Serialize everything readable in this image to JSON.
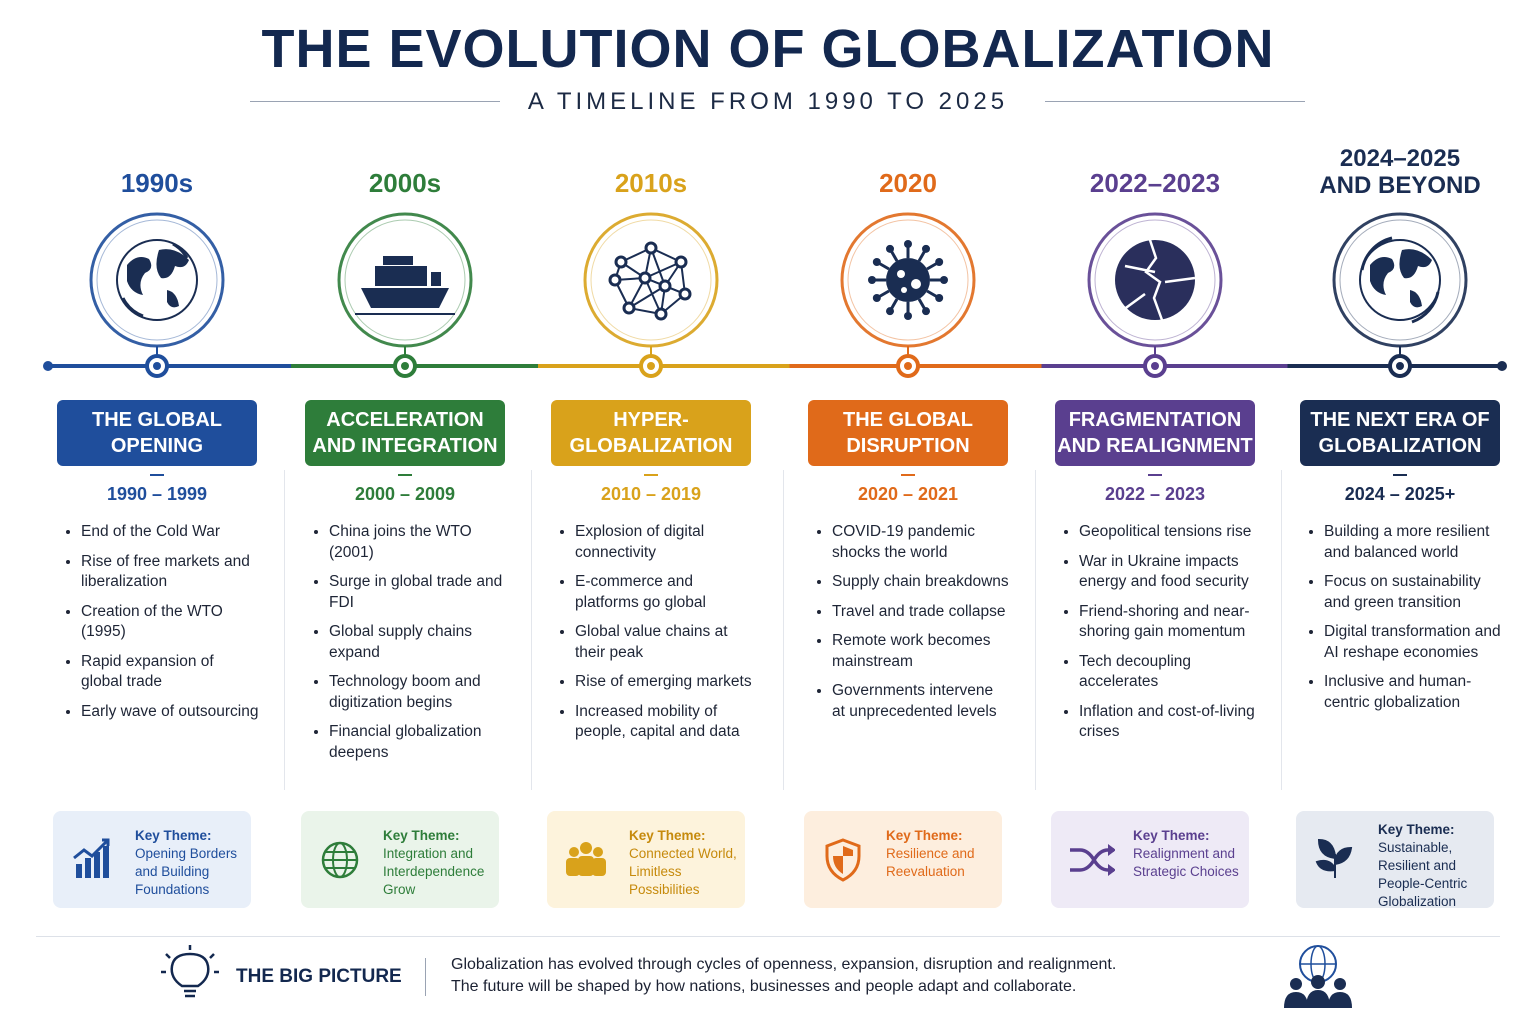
{
  "header": {
    "title": "THE EVOLUTION OF GLOBALIZATION",
    "subtitle": "A TIMELINE FROM 1990 TO 2025"
  },
  "eras": [
    {
      "period": "1990s",
      "heading": "THE GLOBAL OPENING",
      "dates": "1990 – 1999",
      "bullets": [
        "End of the Cold War",
        "Rise of free markets and liberalization",
        "Creation of the WTO (1995)",
        "Rapid expansion of global trade",
        "Early wave of outsourcing"
      ],
      "theme_label": "Key Theme:",
      "theme": "Opening Borders and Building Foundations"
    },
    {
      "period": "2000s",
      "heading": "ACCELERATION AND INTEGRATION",
      "dates": "2000 – 2009",
      "bullets": [
        "China joins the WTO (2001)",
        "Surge in global trade and FDI",
        "Global supply chains expand",
        "Technology boom and digitization begins",
        "Financial globalization deepens"
      ],
      "theme_label": "Key Theme:",
      "theme": "Integration and Interdependence Grow"
    },
    {
      "period": "2010s",
      "heading": "HYPER-GLOBALIZATION",
      "dates": "2010 – 2019",
      "bullets": [
        "Explosion of digital connectivity",
        "E-commerce and platforms go global",
        "Global value chains at their peak",
        "Rise of emerging markets",
        "Increased mobility of people, capital and data"
      ],
      "theme_label": "Key Theme:",
      "theme": "Connected World, Limitless Possibilities"
    },
    {
      "period": "2020",
      "heading": "THE GLOBAL DISRUPTION",
      "dates": "2020 – 2021",
      "bullets": [
        "COVID-19 pandemic shocks the world",
        "Supply chain breakdowns",
        "Travel and trade collapse",
        "Remote work becomes mainstream",
        "Governments intervene at unprecedented levels"
      ],
      "theme_label": "Key Theme:",
      "theme": "Resilience and Reevaluation"
    },
    {
      "period": "2022–2023",
      "heading": "FRAGMENTATION AND REALIGNMENT",
      "dates": "2022 – 2023",
      "bullets": [
        "Geopolitical tensions rise",
        "War in Ukraine impacts energy and food security",
        "Friend-shoring and near-shoring gain momentum",
        "Tech decoupling accelerates",
        "Inflation and cost-of-living crises"
      ],
      "theme_label": "Key Theme:",
      "theme": "Realignment and Strategic Choices"
    },
    {
      "period": "2024–2025 AND BEYOND",
      "heading": "THE NEXT ERA OF GLOBALIZATION",
      "dates": "2024 – 2025+",
      "bullets": [
        "Building a more resilient and balanced world",
        "Focus on sustainability and green transition",
        "Digital transformation and AI reshape economies",
        "Inclusive and human-centric globalization"
      ],
      "theme_label": "Key Theme:",
      "theme": "Sustainable, Resilient and People-Centric Globalization"
    }
  ],
  "footer": {
    "title": "THE BIG PICTURE",
    "lines": [
      "Globalization has evolved through cycles of openness, expansion, disruption and realignment.",
      "The future will be shaped by how nations, businesses and people adapt and collaborate."
    ]
  }
}
